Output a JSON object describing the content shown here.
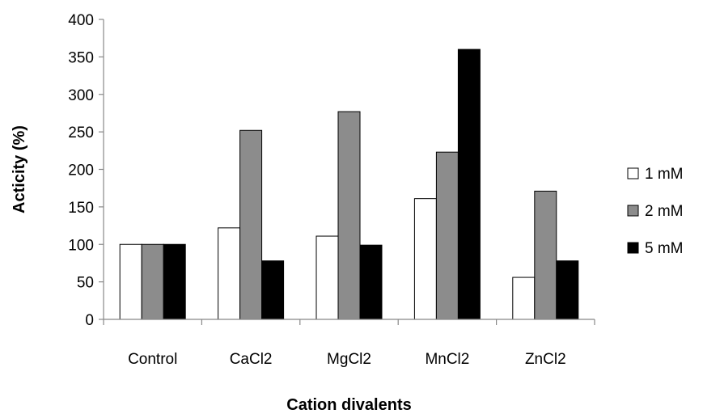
{
  "chart_data": {
    "type": "bar",
    "title": "",
    "xlabel": "Cation divalents",
    "ylabel": "Acticity (%)",
    "ylim": [
      0,
      400
    ],
    "yticks": [
      0,
      50,
      100,
      150,
      200,
      250,
      300,
      350,
      400
    ],
    "categories": [
      "Control",
      "CaCl2",
      "MgCl2",
      "MnCl2",
      "ZnCl2"
    ],
    "series": [
      {
        "name": "1 mM",
        "color": "#ffffff",
        "values": [
          100,
          122,
          111,
          161,
          56
        ]
      },
      {
        "name": "2 mM",
        "color": "#8c8c8c",
        "values": [
          100,
          252,
          277,
          223,
          171
        ]
      },
      {
        "name": "5 mM",
        "color": "#000000",
        "values": [
          100,
          78,
          99,
          360,
          78
        ]
      }
    ],
    "grid": false,
    "legend_position": "right"
  }
}
